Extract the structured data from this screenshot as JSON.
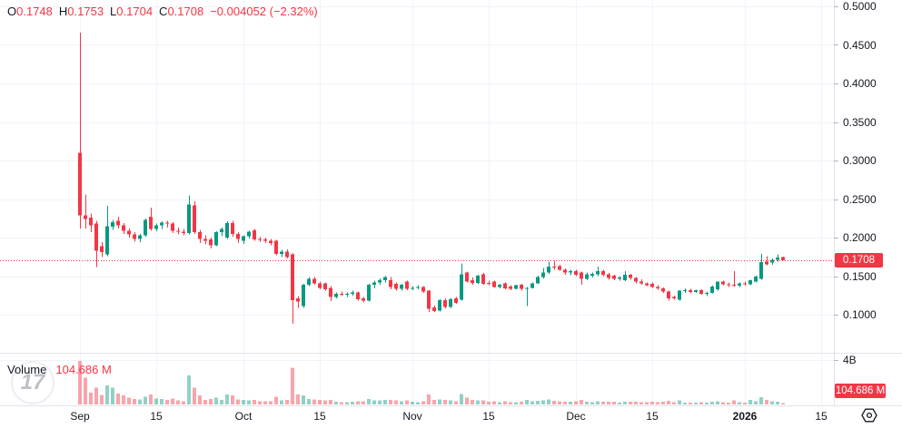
{
  "legend": {
    "o_label": "O",
    "o": "0.1748",
    "h_label": "H",
    "h": "0.1753",
    "l_label": "L",
    "l": "0.1704",
    "c_label": "C",
    "c": "0.1708",
    "change": "−0.004052 (−2.32%)"
  },
  "volume_legend": {
    "label": "Volume",
    "value": "104.686 M"
  },
  "watermark_text": "17",
  "price_axis": {
    "last_price_badge": "0.1708",
    "volume_badge": "104.686 M"
  },
  "icons": {
    "time_axis_right": "hexagon-logo-icon"
  },
  "colors": {
    "up": "#089981",
    "down": "#F23645",
    "vol_up": "rgba(8,153,129,0.45)",
    "vol_down": "rgba(242,54,69,0.45)",
    "grid": "#F0F3FA",
    "separator": "#E0E3EB",
    "tick": "#B2B5BE",
    "axis_text": "#131722",
    "last_price_line": "#F23645",
    "background": "#FFFFFF"
  },
  "chart_data": {
    "type": "candlestick",
    "last_price": 0.1708,
    "price_ticks": [
      {
        "label": "0.5000",
        "value": 0.5
      },
      {
        "label": "0.4500",
        "value": 0.45
      },
      {
        "label": "0.4000",
        "value": 0.4
      },
      {
        "label": "0.3500",
        "value": 0.35
      },
      {
        "label": "0.3000",
        "value": 0.3
      },
      {
        "label": "0.2500",
        "value": 0.25
      },
      {
        "label": "0.2000",
        "value": 0.2
      },
      {
        "label": "0.1500",
        "value": 0.15
      },
      {
        "label": "0.1000",
        "value": 0.1
      }
    ],
    "time_ticks": [
      {
        "label": "Sep",
        "day": 0,
        "bold": false
      },
      {
        "label": "15",
        "day": 14,
        "bold": false
      },
      {
        "label": "Oct",
        "day": 30,
        "bold": false
      },
      {
        "label": "15",
        "day": 44,
        "bold": false
      },
      {
        "label": "Nov",
        "day": 61,
        "bold": false
      },
      {
        "label": "15",
        "day": 75,
        "bold": false
      },
      {
        "label": "Dec",
        "day": 91,
        "bold": false
      },
      {
        "label": "15",
        "day": 105,
        "bold": false
      },
      {
        "label": "2026",
        "day": 122,
        "bold": true
      },
      {
        "label": "15",
        "day": 136,
        "bold": false
      }
    ],
    "volume_axis_max_label": "4B",
    "volume_scale_max": 4000,
    "volume_values_unit": "millions",
    "visible_price_range": [
      0.052,
      0.508
    ],
    "ohlcv": [
      [
        0.31,
        0.466,
        0.212,
        0.229,
        3900
      ],
      [
        0.229,
        0.256,
        0.212,
        0.224,
        2400
      ],
      [
        0.226,
        0.231,
        0.207,
        0.216,
        1050
      ],
      [
        0.218,
        0.222,
        0.162,
        0.183,
        1500
      ],
      [
        0.189,
        0.194,
        0.175,
        0.181,
        850
      ],
      [
        0.178,
        0.241,
        0.176,
        0.215,
        1700
      ],
      [
        0.214,
        0.223,
        0.21,
        0.22,
        1500
      ],
      [
        0.222,
        0.227,
        0.212,
        0.216,
        1000
      ],
      [
        0.216,
        0.219,
        0.205,
        0.209,
        800
      ],
      [
        0.209,
        0.212,
        0.2,
        0.204,
        600
      ],
      [
        0.204,
        0.207,
        0.195,
        0.198,
        500
      ],
      [
        0.198,
        0.205,
        0.194,
        0.203,
        450
      ],
      [
        0.203,
        0.225,
        0.201,
        0.223,
        700
      ],
      [
        0.227,
        0.239,
        0.209,
        0.211,
        900
      ],
      [
        0.211,
        0.218,
        0.208,
        0.216,
        550
      ],
      [
        0.216,
        0.221,
        0.211,
        0.2195,
        480
      ],
      [
        0.2195,
        0.222,
        0.213,
        0.218,
        400
      ],
      [
        0.218,
        0.22,
        0.206,
        0.209,
        520
      ],
      [
        0.209,
        0.213,
        0.204,
        0.2075,
        350
      ],
      [
        0.2075,
        0.211,
        0.203,
        0.206,
        300
      ],
      [
        0.206,
        0.2545,
        0.204,
        0.243,
        2600
      ],
      [
        0.242,
        0.247,
        0.205,
        0.207,
        1500
      ],
      [
        0.207,
        0.21,
        0.193,
        0.198,
        800
      ],
      [
        0.198,
        0.203,
        0.191,
        0.196,
        420
      ],
      [
        0.1976,
        0.2,
        0.186,
        0.1898,
        500
      ],
      [
        0.19,
        0.208,
        0.189,
        0.207,
        600
      ],
      [
        0.207,
        0.213,
        0.202,
        0.211,
        400
      ],
      [
        0.2,
        0.221,
        0.198,
        0.219,
        900
      ],
      [
        0.219,
        0.222,
        0.201,
        0.2045,
        800
      ],
      [
        0.2045,
        0.207,
        0.193,
        0.1985,
        450
      ],
      [
        0.196,
        0.203,
        0.192,
        0.2015,
        400
      ],
      [
        0.2015,
        0.209,
        0.199,
        0.2074,
        380
      ],
      [
        0.2094,
        0.211,
        0.196,
        0.1976,
        420
      ],
      [
        0.198,
        0.201,
        0.194,
        0.1976,
        300
      ],
      [
        0.1976,
        0.2,
        0.193,
        0.196,
        280
      ],
      [
        0.196,
        0.198,
        0.19,
        0.193,
        300
      ],
      [
        0.1956,
        0.197,
        0.177,
        0.179,
        700
      ],
      [
        0.179,
        0.184,
        0.175,
        0.182,
        350
      ],
      [
        0.182,
        0.185,
        0.173,
        0.1745,
        400
      ],
      [
        0.178,
        0.18,
        0.088,
        0.119,
        3300
      ],
      [
        0.121,
        0.124,
        0.109,
        0.117,
        900
      ],
      [
        0.111,
        0.14,
        0.109,
        0.1388,
        800
      ],
      [
        0.139,
        0.149,
        0.137,
        0.1467,
        500
      ],
      [
        0.1467,
        0.149,
        0.139,
        0.1408,
        450
      ],
      [
        0.1408,
        0.143,
        0.133,
        0.135,
        400
      ],
      [
        0.1408,
        0.142,
        0.131,
        0.133,
        380
      ],
      [
        0.1349,
        0.137,
        0.1176,
        0.1231,
        420
      ],
      [
        0.1231,
        0.129,
        0.121,
        0.127,
        250
      ],
      [
        0.127,
        0.13,
        0.124,
        0.1265,
        200
      ],
      [
        0.1265,
        0.129,
        0.123,
        0.127,
        220
      ],
      [
        0.127,
        0.131,
        0.125,
        0.129,
        260
      ],
      [
        0.129,
        0.13,
        0.118,
        0.12,
        300
      ],
      [
        0.121,
        0.123,
        0.116,
        0.118,
        280
      ],
      [
        0.118,
        0.14,
        0.117,
        0.1388,
        500
      ],
      [
        0.139,
        0.144,
        0.134,
        0.142,
        380
      ],
      [
        0.142,
        0.147,
        0.139,
        0.1447,
        350
      ],
      [
        0.1447,
        0.15,
        0.142,
        0.1486,
        400
      ],
      [
        0.1447,
        0.1486,
        0.133,
        0.136,
        420
      ],
      [
        0.14,
        0.142,
        0.131,
        0.1335,
        380
      ],
      [
        0.1335,
        0.14,
        0.131,
        0.139,
        300
      ],
      [
        0.1427,
        0.144,
        0.1318,
        0.1335,
        350
      ],
      [
        0.1335,
        0.137,
        0.132,
        0.1349,
        250
      ],
      [
        0.1349,
        0.138,
        0.133,
        0.136,
        220
      ],
      [
        0.136,
        0.137,
        0.128,
        0.13,
        300
      ],
      [
        0.131,
        0.132,
        0.1035,
        0.1075,
        900
      ],
      [
        0.1094,
        0.112,
        0.1035,
        0.105,
        400
      ],
      [
        0.1055,
        0.12,
        0.104,
        0.119,
        450
      ],
      [
        0.119,
        0.121,
        0.108,
        0.11,
        400
      ],
      [
        0.11,
        0.122,
        0.109,
        0.12,
        380
      ],
      [
        0.121,
        0.123,
        0.114,
        0.1153,
        300
      ],
      [
        0.1192,
        0.1663,
        0.118,
        0.1525,
        950
      ],
      [
        0.1545,
        0.156,
        0.142,
        0.1427,
        600
      ],
      [
        0.1447,
        0.148,
        0.139,
        0.141,
        400
      ],
      [
        0.141,
        0.152,
        0.14,
        0.1506,
        350
      ],
      [
        0.1525,
        0.154,
        0.1388,
        0.14,
        380
      ],
      [
        0.141,
        0.144,
        0.138,
        0.1408,
        250
      ],
      [
        0.1427,
        0.144,
        0.1349,
        0.136,
        300
      ],
      [
        0.136,
        0.14,
        0.134,
        0.139,
        220
      ],
      [
        0.1408,
        0.142,
        0.1329,
        0.134,
        280
      ],
      [
        0.1365,
        0.138,
        0.132,
        0.1335,
        200
      ],
      [
        0.1335,
        0.139,
        0.133,
        0.138,
        210
      ],
      [
        0.139,
        0.14,
        0.131,
        0.1335,
        260
      ],
      [
        0.1335,
        0.136,
        0.111,
        0.135,
        400
      ],
      [
        0.135,
        0.142,
        0.134,
        0.1408,
        300
      ],
      [
        0.1408,
        0.1506,
        0.14,
        0.1486,
        320
      ],
      [
        0.1486,
        0.1604,
        0.147,
        0.1545,
        380
      ],
      [
        0.1545,
        0.169,
        0.153,
        0.1623,
        450
      ],
      [
        0.1623,
        0.17,
        0.158,
        0.1615,
        320
      ],
      [
        0.1631,
        0.165,
        0.157,
        0.1584,
        280
      ],
      [
        0.1584,
        0.16,
        0.152,
        0.1545,
        260
      ],
      [
        0.1545,
        0.158,
        0.151,
        0.1565,
        240
      ],
      [
        0.1565,
        0.158,
        0.15,
        0.152,
        300
      ],
      [
        0.1545,
        0.156,
        0.139,
        0.1467,
        420
      ],
      [
        0.1467,
        0.1545,
        0.145,
        0.1525,
        250
      ],
      [
        0.1506,
        0.155,
        0.148,
        0.153,
        200
      ],
      [
        0.1525,
        0.1623,
        0.15,
        0.1565,
        280
      ],
      [
        0.1565,
        0.158,
        0.15,
        0.152,
        240
      ],
      [
        0.1525,
        0.154,
        0.1455,
        0.1478,
        260
      ],
      [
        0.1506,
        0.152,
        0.1447,
        0.1467,
        230
      ],
      [
        0.1467,
        0.15,
        0.144,
        0.148,
        180
      ],
      [
        0.145,
        0.1565,
        0.1435,
        0.152,
        260
      ],
      [
        0.152,
        0.153,
        0.1455,
        0.1478,
        240
      ],
      [
        0.1478,
        0.149,
        0.1408,
        0.1428,
        260
      ],
      [
        0.1428,
        0.146,
        0.139,
        0.1408,
        220
      ],
      [
        0.1408,
        0.142,
        0.1369,
        0.1385,
        200
      ],
      [
        0.14,
        0.1415,
        0.1349,
        0.1361,
        240
      ],
      [
        0.1361,
        0.138,
        0.1322,
        0.134,
        200
      ],
      [
        0.134,
        0.1355,
        0.1282,
        0.13,
        260
      ],
      [
        0.13,
        0.131,
        0.118,
        0.1212,
        320
      ],
      [
        0.1231,
        0.125,
        0.1192,
        0.121,
        220
      ],
      [
        0.1192,
        0.1315,
        0.118,
        0.131,
        350
      ],
      [
        0.131,
        0.134,
        0.128,
        0.1315,
        180
      ],
      [
        0.1315,
        0.1335,
        0.1275,
        0.1295,
        160
      ],
      [
        0.1295,
        0.1325,
        0.128,
        0.1315,
        170
      ],
      [
        0.1315,
        0.133,
        0.1259,
        0.1271,
        200
      ],
      [
        0.1271,
        0.13,
        0.124,
        0.1285,
        150
      ],
      [
        0.1285,
        0.1375,
        0.1275,
        0.1365,
        250
      ],
      [
        0.133,
        0.143,
        0.131,
        0.1427,
        300
      ],
      [
        0.1427,
        0.144,
        0.138,
        0.1395,
        200
      ],
      [
        0.1395,
        0.1415,
        0.136,
        0.138,
        180
      ],
      [
        0.139,
        0.1565,
        0.136,
        0.1375,
        350
      ],
      [
        0.1375,
        0.142,
        0.136,
        0.1405,
        190
      ],
      [
        0.1405,
        0.143,
        0.1375,
        0.1395,
        180
      ],
      [
        0.1395,
        0.1455,
        0.138,
        0.1447,
        420
      ],
      [
        0.1427,
        0.1505,
        0.1415,
        0.1494,
        280
      ],
      [
        0.1467,
        0.1788,
        0.1455,
        0.1682,
        650
      ],
      [
        0.169,
        0.176,
        0.164,
        0.1655,
        400
      ],
      [
        0.1674,
        0.173,
        0.165,
        0.1714,
        300
      ],
      [
        0.1714,
        0.178,
        0.169,
        0.174,
        250
      ],
      [
        0.1748,
        0.1753,
        0.1704,
        0.1708,
        104.686
      ]
    ]
  }
}
